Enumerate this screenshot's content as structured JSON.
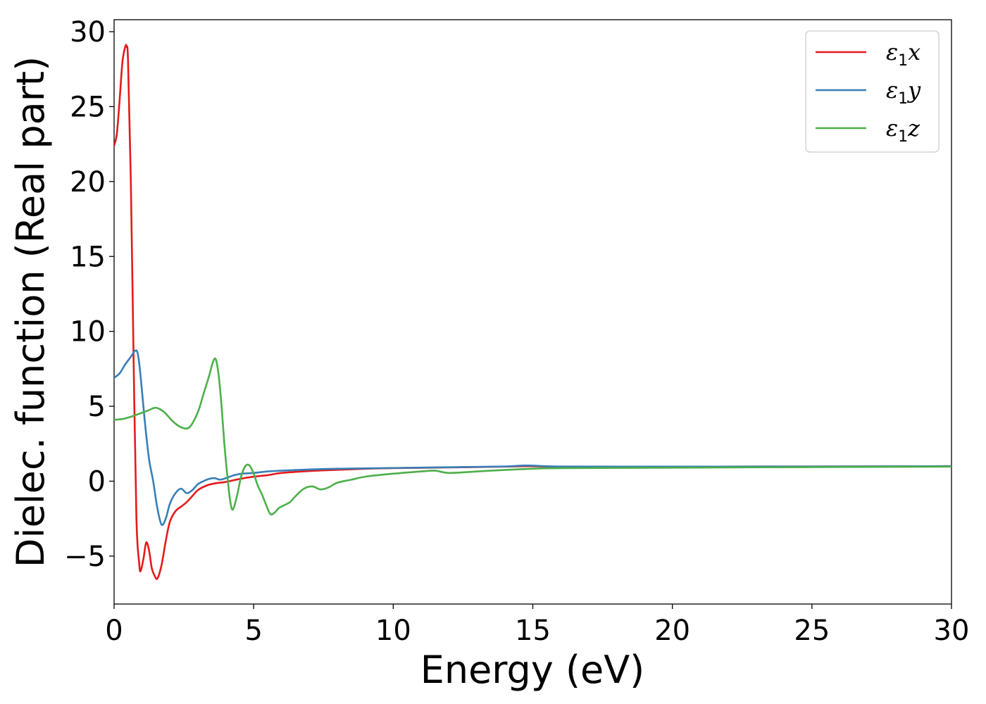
{
  "chart_data": {
    "type": "line",
    "xlabel": "Energy (eV)",
    "ylabel": "Dielec. function (Real part)",
    "xlim": [
      0,
      30
    ],
    "ylim": [
      -8.2,
      30.8
    ],
    "xticks": [
      0,
      5,
      10,
      15,
      20,
      25,
      30
    ],
    "yticks": [
      -5,
      0,
      5,
      10,
      15,
      20,
      25,
      30
    ],
    "xtick_labels": [
      "0",
      "5",
      "10",
      "15",
      "20",
      "25",
      "30"
    ],
    "ytick_labels": [
      "−5",
      "0",
      "5",
      "10",
      "15",
      "20",
      "25",
      "30"
    ],
    "grid": false,
    "legend_position": "top-right",
    "series": [
      {
        "name": "ε₁x",
        "legend_main": "ε",
        "legend_sub": "1",
        "legend_tail": "x",
        "color": "#e41a1c",
        "x": [
          0,
          0.1,
          0.2,
          0.3,
          0.4,
          0.45,
          0.5,
          0.6,
          0.7,
          0.8,
          0.9,
          0.95,
          1.05,
          1.15,
          1.25,
          1.35,
          1.45,
          1.55,
          1.7,
          1.85,
          2.0,
          2.2,
          2.4,
          2.6,
          2.8,
          3.0,
          3.3,
          3.6,
          4.0,
          4.5,
          5.0,
          5.5,
          6.0,
          7.0,
          8.0,
          9.0,
          10,
          12,
          14,
          14.8,
          16,
          20,
          25,
          30
        ],
        "y": [
          22.4,
          23.2,
          25.5,
          28.0,
          29.0,
          29.0,
          28.0,
          20.0,
          8.0,
          -2.5,
          -5.5,
          -6.0,
          -5.2,
          -4.1,
          -4.6,
          -5.8,
          -6.3,
          -6.5,
          -5.6,
          -4.0,
          -2.7,
          -2.0,
          -1.7,
          -1.4,
          -1.0,
          -0.6,
          -0.3,
          -0.15,
          -0.05,
          0.15,
          0.3,
          0.4,
          0.55,
          0.68,
          0.76,
          0.83,
          0.87,
          0.92,
          0.97,
          1.0,
          0.97,
          0.97,
          0.98,
          1.0
        ]
      },
      {
        "name": "ε₁y",
        "legend_main": "ε",
        "legend_sub": "1",
        "legend_tail": "y",
        "color": "#377eb8",
        "x": [
          0,
          0.2,
          0.4,
          0.6,
          0.75,
          0.85,
          0.95,
          1.1,
          1.25,
          1.4,
          1.55,
          1.7,
          1.85,
          2.0,
          2.2,
          2.4,
          2.6,
          2.8,
          3.0,
          3.2,
          3.4,
          3.6,
          3.8,
          4.0,
          4.3,
          4.6,
          5.0,
          5.5,
          6.0,
          7.0,
          8.0,
          10,
          12,
          14,
          14.8,
          16,
          20,
          25,
          30
        ],
        "y": [
          6.9,
          7.2,
          7.8,
          8.3,
          8.7,
          8.5,
          7.0,
          4.0,
          1.5,
          0.0,
          -1.8,
          -2.9,
          -2.5,
          -1.5,
          -0.8,
          -0.5,
          -0.8,
          -0.6,
          -0.2,
          0.0,
          0.15,
          0.2,
          0.1,
          0.2,
          0.4,
          0.5,
          0.55,
          0.65,
          0.7,
          0.78,
          0.83,
          0.88,
          0.93,
          0.98,
          1.05,
          0.98,
          0.97,
          0.98,
          1.0
        ]
      },
      {
        "name": "ε₁z",
        "legend_main": "ε",
        "legend_sub": "1",
        "legend_tail": "z",
        "color": "#4daf4a",
        "x": [
          0,
          0.3,
          0.6,
          0.9,
          1.2,
          1.5,
          1.8,
          2.1,
          2.4,
          2.7,
          3.0,
          3.2,
          3.4,
          3.55,
          3.65,
          3.75,
          3.85,
          3.95,
          4.05,
          4.15,
          4.25,
          4.4,
          4.55,
          4.7,
          4.85,
          5.0,
          5.15,
          5.3,
          5.45,
          5.6,
          5.75,
          5.9,
          6.1,
          6.3,
          6.5,
          6.8,
          7.1,
          7.4,
          7.7,
          8.0,
          8.5,
          9.0,
          10,
          11,
          11.5,
          12,
          13,
          14,
          15,
          16,
          20,
          25,
          30
        ],
        "y": [
          4.1,
          4.15,
          4.3,
          4.5,
          4.7,
          4.9,
          4.6,
          4.0,
          3.6,
          3.6,
          4.6,
          5.8,
          7.0,
          8.0,
          8.1,
          7.0,
          5.0,
          2.5,
          0.5,
          -1.2,
          -1.9,
          -1.0,
          0.3,
          1.0,
          1.05,
          0.5,
          -0.3,
          -0.9,
          -1.6,
          -2.2,
          -2.1,
          -1.8,
          -1.6,
          -1.4,
          -1.0,
          -0.5,
          -0.35,
          -0.55,
          -0.4,
          -0.1,
          0.1,
          0.3,
          0.5,
          0.65,
          0.7,
          0.55,
          0.65,
          0.75,
          0.83,
          0.87,
          0.9,
          0.94,
          0.97
        ]
      }
    ]
  }
}
